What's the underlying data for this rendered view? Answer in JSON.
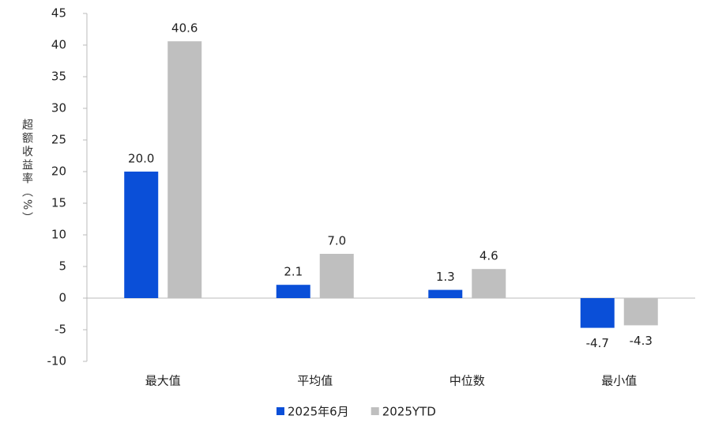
{
  "chart_data": {
    "type": "bar",
    "y_label": "超额收益率（%）",
    "categories": [
      "最大值",
      "平均值",
      "中位数",
      "最小值"
    ],
    "series": [
      {
        "name": "2025年6月",
        "color": "#0a4fd8",
        "values": [
          20.0,
          2.1,
          1.3,
          -4.7
        ],
        "value_labels": [
          "20.0",
          "2.1",
          "1.3",
          "-4.7"
        ]
      },
      {
        "name": "2025YTD",
        "color": "#bfbfbf",
        "values": [
          40.6,
          7.0,
          4.6,
          -4.3
        ],
        "value_labels": [
          "40.6",
          "7.0",
          "4.6",
          "-4.3"
        ]
      }
    ],
    "ylim": [
      -10,
      45
    ],
    "yticks": [
      -10,
      -5,
      0,
      5,
      10,
      15,
      20,
      25,
      30,
      35,
      40,
      45
    ],
    "grid": false,
    "legend": "bottom"
  }
}
